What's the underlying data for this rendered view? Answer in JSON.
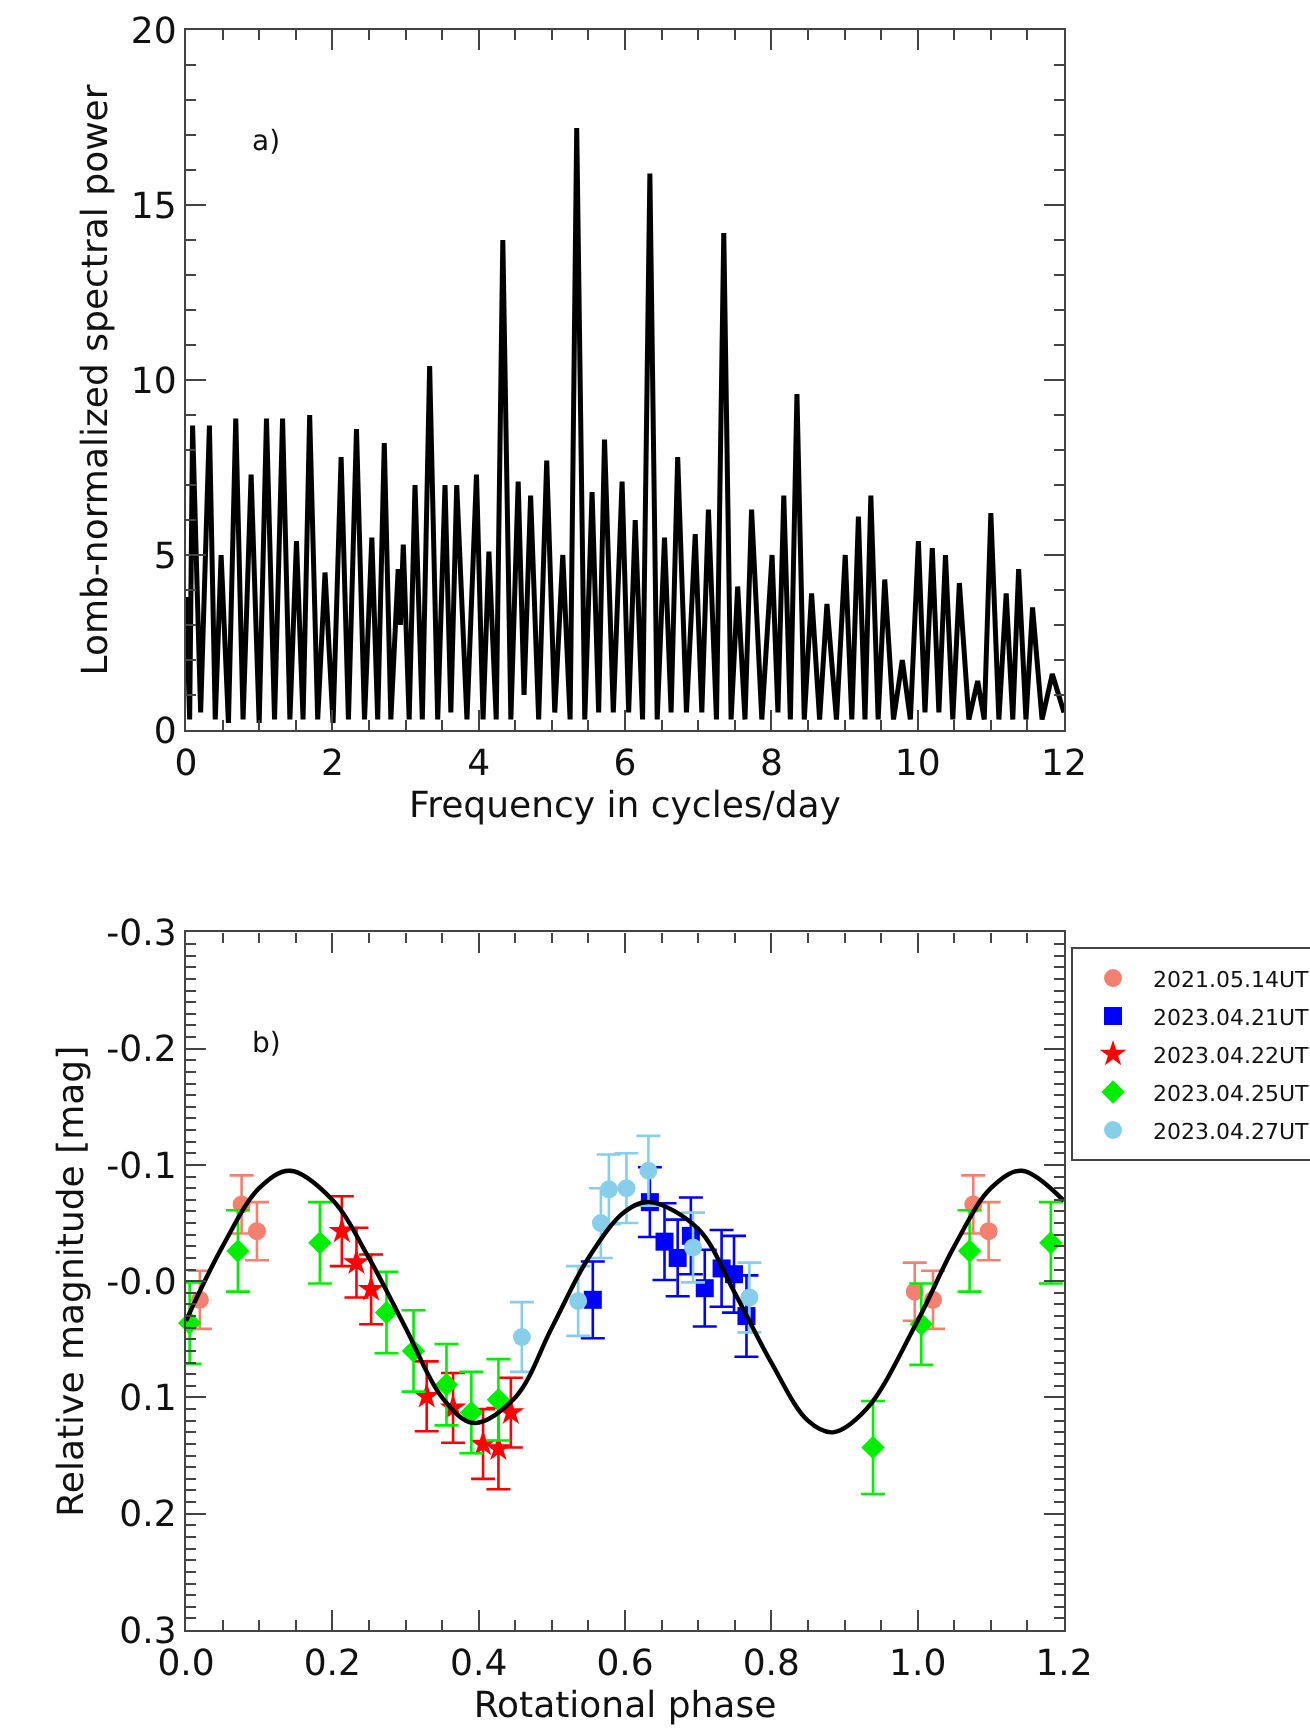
{
  "chart_data": [
    {
      "type": "line",
      "xlabel": "Frequency in cycles/day",
      "ylabel": "Lomb-normalized spectral power",
      "annotations": [
        "a)"
      ],
      "xlim": [
        0,
        12
      ],
      "xticks": [
        0,
        2,
        4,
        6,
        8,
        10,
        12
      ],
      "ylim": [
        0,
        20
      ],
      "yticks": [
        0,
        5,
        10,
        15,
        20
      ],
      "legend": false,
      "series": [
        {
          "color": "#000000",
          "marker": "none",
          "line_style": "solid",
          "x": [
            0,
            0.05,
            0.09,
            0.2,
            0.32,
            0.4,
            0.48,
            0.58,
            0.68,
            0.78,
            0.89,
            1.0,
            1.1,
            1.21,
            1.32,
            1.42,
            1.51,
            1.6,
            1.69,
            1.8,
            1.9,
            2.01,
            2.12,
            2.22,
            2.33,
            2.44,
            2.54,
            2.62,
            2.71,
            2.8,
            2.9,
            2.93,
            2.97,
            3.05,
            3.13,
            3.23,
            3.33,
            3.44,
            3.54,
            3.62,
            3.7,
            3.84,
            3.97,
            4.06,
            4.14,
            4.24,
            4.33,
            4.44,
            4.54,
            4.62,
            4.71,
            4.82,
            4.93,
            5.04,
            5.15,
            5.25,
            5.34,
            5.45,
            5.55,
            5.64,
            5.72,
            5.84,
            5.96,
            6.05,
            6.14,
            6.24,
            6.34,
            6.44,
            6.54,
            6.63,
            6.72,
            6.84,
            6.96,
            7.05,
            7.14,
            7.25,
            7.35,
            7.45,
            7.54,
            7.64,
            7.73,
            7.87,
            8.01,
            8.09,
            8.17,
            8.26,
            8.35,
            8.45,
            8.55,
            8.66,
            8.76,
            8.89,
            9.01,
            9.1,
            9.19,
            9.28,
            9.36,
            9.46,
            9.55,
            9.67,
            9.79,
            9.9,
            10.01,
            10.1,
            10.2,
            10.29,
            10.38,
            10.48,
            10.57,
            10.7,
            10.82,
            10.91,
            11.0,
            11.11,
            11.21,
            11.3,
            11.38,
            11.48,
            11.57,
            11.7,
            11.84,
            12.0
          ],
          "values": [
            3.8,
            0.3,
            8.7,
            0.5,
            8.7,
            0.3,
            5.0,
            0.2,
            8.9,
            0.3,
            7.3,
            0.2,
            8.9,
            0.3,
            8.9,
            0.3,
            5.4,
            0.3,
            9.0,
            0.3,
            4.5,
            0.2,
            7.8,
            0.3,
            8.6,
            0.3,
            5.5,
            0.3,
            8.2,
            0.3,
            4.6,
            3.0,
            5.3,
            0.3,
            7.0,
            0.3,
            10.4,
            0.3,
            7.0,
            0.5,
            7.0,
            0.3,
            7.3,
            0.3,
            5.1,
            0.3,
            14.0,
            0.3,
            7.1,
            1.0,
            6.7,
            0.3,
            7.7,
            0.5,
            5.0,
            0.3,
            17.2,
            0.3,
            6.8,
            0.5,
            8.3,
            0.5,
            7.1,
            0.5,
            6.0,
            0.3,
            15.9,
            0.3,
            5.5,
            0.5,
            7.8,
            0.5,
            5.6,
            0.5,
            6.3,
            0.3,
            14.2,
            0.3,
            4.1,
            0.3,
            6.3,
            0.3,
            5.0,
            0.5,
            6.7,
            0.3,
            9.6,
            0.3,
            3.9,
            0.3,
            3.6,
            0.3,
            5.0,
            0.3,
            6.1,
            0.3,
            6.7,
            0.3,
            4.3,
            0.3,
            2.0,
            0.3,
            5.4,
            0.5,
            5.2,
            0.5,
            5.0,
            0.3,
            4.2,
            0.3,
            1.4,
            0.3,
            6.2,
            0.3,
            3.9,
            0.3,
            4.6,
            0.3,
            3.5,
            0.3,
            1.6,
            0.5
          ]
        }
      ]
    },
    {
      "type": "scatter",
      "xlabel": "Rotational phase",
      "ylabel": "Relative magnitude [mag]",
      "annotations": [
        "b)"
      ],
      "xlim": [
        0,
        1.2
      ],
      "xticks": [
        {
          "value": 0,
          "label": "0.0"
        },
        0.2,
        0.4,
        0.6,
        0.8,
        {
          "value": 1,
          "label": "1.0"
        },
        1.2
      ],
      "ylim": [
        0.3,
        -0.3
      ],
      "yticks": [
        0.3,
        0.2,
        0.1,
        {
          "value": 0,
          "label": "-0.0"
        },
        -0.1,
        -0.2,
        -0.3
      ],
      "legend": "right",
      "series": [
        {
          "name": "2021.05.14UT",
          "color": "#f4806f",
          "marker": "circle",
          "x": [
            0.019,
            0.076,
            0.097,
            0.996,
            1.021,
            1.076,
            1.097
          ],
          "values": [
            0.016,
            -0.066,
            -0.043,
            0.009,
            0.016,
            -0.066,
            -0.043
          ],
          "errors": [
            0.025,
            0.025,
            0.025,
            0.025,
            0.025,
            0.025,
            0.025
          ]
        },
        {
          "name": "2023.04.21UT",
          "color": "#0000ff",
          "marker": "square",
          "x": [
            0.556,
            0.634,
            0.654,
            0.672,
            0.69,
            0.709,
            0.732,
            0.749,
            0.766
          ],
          "values": [
            0.016,
            -0.068,
            -0.034,
            -0.02,
            -0.039,
            0.006,
            -0.011,
            -0.006,
            0.03
          ],
          "errors": [
            0.033,
            0.03,
            0.033,
            0.033,
            0.033,
            0.033,
            0.033,
            0.033,
            0.035
          ]
        },
        {
          "name": "2023.04.22UT",
          "color": "#ff0000",
          "marker": "star",
          "x": [
            0.213,
            0.233,
            0.253,
            0.329,
            0.365,
            0.406,
            0.427,
            0.444
          ],
          "values": [
            -0.043,
            -0.016,
            0.007,
            0.099,
            0.109,
            0.14,
            0.144,
            0.113
          ],
          "errors": [
            0.03,
            0.03,
            0.03,
            0.03,
            0.03,
            0.03,
            0.035,
            0.03
          ]
        },
        {
          "name": "2023.04.25UT",
          "color": "#00ee00",
          "marker": "diamond",
          "x": [
            0.005,
            0.071,
            0.183,
            0.274,
            0.311,
            0.356,
            0.39,
            0.427,
            0.939,
            1.005,
            1.071,
            1.182
          ],
          "values": [
            0.036,
            -0.026,
            -0.033,
            0.027,
            0.06,
            0.089,
            0.113,
            0.102,
            0.143,
            0.037,
            -0.026,
            -0.033
          ],
          "errors": [
            0.035,
            0.035,
            0.035,
            0.035,
            0.035,
            0.035,
            0.035,
            0.035,
            0.04,
            0.035,
            0.035,
            0.035
          ]
        },
        {
          "name": "2023.04.27UT",
          "color": "#87ceeb",
          "marker": "circle",
          "x": [
            0.459,
            0.536,
            0.567,
            0.578,
            0.602,
            0.632,
            0.693,
            0.77
          ],
          "values": [
            0.048,
            0.017,
            -0.05,
            -0.079,
            -0.08,
            -0.095,
            -0.029,
            0.014
          ],
          "errors": [
            0.03,
            0.03,
            0.03,
            0.03,
            0.03,
            0.03,
            0.03,
            0.03
          ]
        },
        {
          "type": "line",
          "color": "#000000",
          "marker": "none",
          "line_style": "solid",
          "x": [
            0,
            0.05,
            0.1,
            0.142,
            0.2,
            0.25,
            0.3,
            0.35,
            0.393,
            0.45,
            0.5,
            0.55,
            0.6,
            0.634,
            0.7,
            0.75,
            0.8,
            0.85,
            0.884,
            0.93,
            1.0,
            1.05,
            1.1,
            1.142,
            1.2
          ],
          "values": [
            0.034,
            -0.03,
            -0.08,
            -0.095,
            -0.07,
            -0.02,
            0.04,
            0.1,
            0.122,
            0.1,
            0.04,
            -0.02,
            -0.06,
            -0.068,
            -0.045,
            0.01,
            0.07,
            0.12,
            0.13,
            0.11,
            0.034,
            -0.03,
            -0.08,
            -0.095,
            -0.069
          ]
        }
      ]
    }
  ]
}
